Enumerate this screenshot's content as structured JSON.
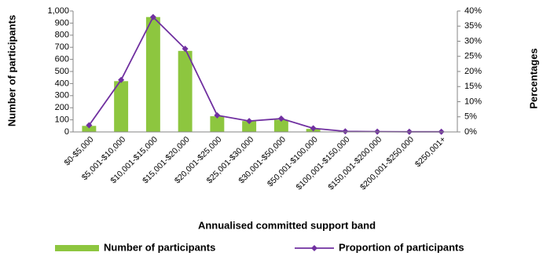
{
  "chart_data": {
    "type": "bar",
    "x_label": "Annualised committed support band",
    "y_label": "Number of participants",
    "y2_label": "Percentages",
    "categories": [
      "$0-$5,000",
      "$5,001-$10,000",
      "$10,001-$15,000",
      "$15,001-$20,000",
      "$20,001-$25,000",
      "$25,001-$30,000",
      "$30,001-$50,000",
      "$50,001-$100,000",
      "$100,001-$150,000",
      "$150,001-$200,000",
      "$200,001-$250,000",
      "$250,001+"
    ],
    "series": [
      {
        "name": "Number of participants",
        "type": "bar",
        "color": "#8dc63f",
        "values": [
          50,
          420,
          950,
          670,
          130,
          90,
          100,
          25,
          5,
          2,
          1,
          1
        ]
      },
      {
        "name": "Proportion of participants",
        "type": "line",
        "axis": "y2",
        "color": "#7030a0",
        "values": [
          2.2,
          17.2,
          38,
          27.5,
          5.5,
          3.6,
          4.4,
          1.2,
          0.2,
          0.1,
          0.05,
          0.05
        ]
      }
    ],
    "ylim": [
      0,
      1000
    ],
    "yticks": [
      0,
      100,
      200,
      300,
      400,
      500,
      600,
      700,
      800,
      900,
      {
        "value": 1000,
        "label": "1,000"
      }
    ],
    "y2lim": [
      0,
      40
    ],
    "y2ticks": [
      {
        "value": 0,
        "label": "0%"
      },
      {
        "value": 5,
        "label": "5%"
      },
      {
        "value": 10,
        "label": "10%"
      },
      {
        "value": 15,
        "label": "15%"
      },
      {
        "value": 20,
        "label": "20%"
      },
      {
        "value": 25,
        "label": "25%"
      },
      {
        "value": 30,
        "label": "30%"
      },
      {
        "value": 35,
        "label": "35%"
      },
      {
        "value": 40,
        "label": "40%"
      }
    ],
    "legend": "bottom"
  }
}
